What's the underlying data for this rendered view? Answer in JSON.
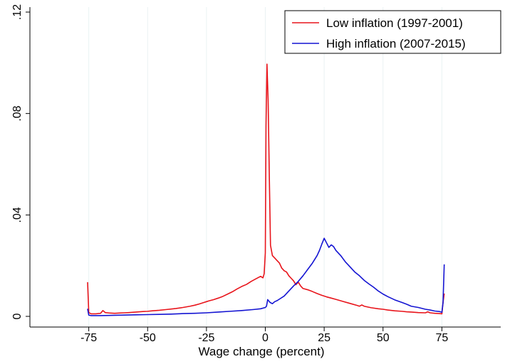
{
  "chart_data": {
    "type": "line",
    "xlabel": "Wage change (percent)",
    "ylabel": "",
    "xlim": [
      -100,
      100
    ],
    "ylim": [
      0,
      0.12
    ],
    "xticks": [
      -75,
      -50,
      -25,
      0,
      25,
      50,
      75
    ],
    "xtick_labels": [
      "-75",
      "-50",
      "-25",
      "0",
      "25",
      "50",
      "75"
    ],
    "yticks": [
      0,
      0.04,
      0.08,
      0.12
    ],
    "ytick_labels": [
      "0",
      ".04",
      ".08",
      ".12"
    ],
    "grid": "vertical gridlines",
    "legend_position": "top-right",
    "series": [
      {
        "name": "Low inflation (1997-2001)",
        "color": "#e8141b",
        "x": [
          -75.5,
          -75,
          -74,
          -72,
          -70,
          -69,
          -68,
          -66,
          -64,
          -62,
          -60,
          -58,
          -55,
          -52,
          -50,
          -48,
          -45,
          -42,
          -40,
          -38,
          -35,
          -32,
          -30,
          -28,
          -26,
          -25,
          -24,
          -22,
          -20,
          -18,
          -16,
          -14,
          -12,
          -10,
          -8,
          -6,
          -4,
          -2,
          -1,
          -0.5,
          0,
          0.3,
          0.7,
          1.2,
          1.7,
          2.2,
          3,
          4,
          5,
          6,
          7,
          8,
          9,
          10,
          11,
          12,
          13,
          14,
          15,
          16,
          18,
          20,
          22,
          24,
          26,
          28,
          30,
          33,
          36,
          39,
          40,
          41,
          42,
          45,
          48,
          50,
          52,
          55,
          58,
          60,
          62,
          65,
          68,
          69,
          70,
          72,
          74,
          75,
          75.5,
          76
        ],
        "y": [
          0.0135,
          0.0015,
          0.001,
          0.001,
          0.0012,
          0.0023,
          0.0015,
          0.0013,
          0.0012,
          0.0013,
          0.0014,
          0.0015,
          0.0017,
          0.0019,
          0.002,
          0.0022,
          0.0024,
          0.0027,
          0.0029,
          0.0031,
          0.0035,
          0.004,
          0.0044,
          0.0049,
          0.0055,
          0.0058,
          0.0061,
          0.0066,
          0.0072,
          0.0079,
          0.0088,
          0.0097,
          0.0108,
          0.0118,
          0.0126,
          0.0138,
          0.0148,
          0.0158,
          0.0152,
          0.0168,
          0.025,
          0.075,
          0.0995,
          0.085,
          0.055,
          0.028,
          0.024,
          0.023,
          0.022,
          0.021,
          0.019,
          0.018,
          0.0175,
          0.016,
          0.015,
          0.014,
          0.0125,
          0.0135,
          0.012,
          0.011,
          0.0105,
          0.0098,
          0.009,
          0.0083,
          0.0077,
          0.0072,
          0.0067,
          0.0059,
          0.0051,
          0.0043,
          0.004,
          0.0045,
          0.004,
          0.0034,
          0.003,
          0.0028,
          0.0025,
          0.0022,
          0.002,
          0.0018,
          0.0017,
          0.0015,
          0.0014,
          0.0018,
          0.0014,
          0.0012,
          0.0011,
          0.001,
          0.0055,
          0.009
        ]
      },
      {
        "name": "High inflation (2007-2015)",
        "color": "#1414d2",
        "x": [
          -75.5,
          -75,
          -74,
          -72,
          -70,
          -65,
          -60,
          -55,
          -50,
          -45,
          -40,
          -35,
          -30,
          -25,
          -20,
          -15,
          -10,
          -5,
          -2,
          0,
          0.5,
          1,
          2,
          3,
          4,
          5,
          6,
          8,
          10,
          12,
          14,
          16,
          18,
          20,
          22,
          23,
          24,
          25,
          26,
          27,
          28,
          29,
          30,
          32,
          34,
          36,
          38,
          40,
          42,
          44,
          46,
          48,
          50,
          52,
          55,
          58,
          60,
          62,
          65,
          68,
          70,
          72,
          74,
          75,
          75.5,
          76
        ],
        "y": [
          0.003,
          0.0005,
          0.0003,
          0.0003,
          0.0003,
          0.0004,
          0.0005,
          0.0006,
          0.0007,
          0.0008,
          0.0009,
          0.0011,
          0.0012,
          0.0014,
          0.0017,
          0.002,
          0.0023,
          0.0027,
          0.003,
          0.0035,
          0.004,
          0.0066,
          0.0055,
          0.005,
          0.0058,
          0.0062,
          0.0068,
          0.008,
          0.01,
          0.012,
          0.0138,
          0.016,
          0.0185,
          0.021,
          0.024,
          0.026,
          0.0285,
          0.0308,
          0.029,
          0.0272,
          0.0282,
          0.0275,
          0.026,
          0.024,
          0.0215,
          0.0195,
          0.0175,
          0.016,
          0.0142,
          0.0128,
          0.0115,
          0.01,
          0.0088,
          0.0078,
          0.0065,
          0.0055,
          0.0048,
          0.004,
          0.0035,
          0.0028,
          0.0025,
          0.0021,
          0.0019,
          0.0016,
          0.0055,
          0.0205
        ]
      }
    ]
  }
}
